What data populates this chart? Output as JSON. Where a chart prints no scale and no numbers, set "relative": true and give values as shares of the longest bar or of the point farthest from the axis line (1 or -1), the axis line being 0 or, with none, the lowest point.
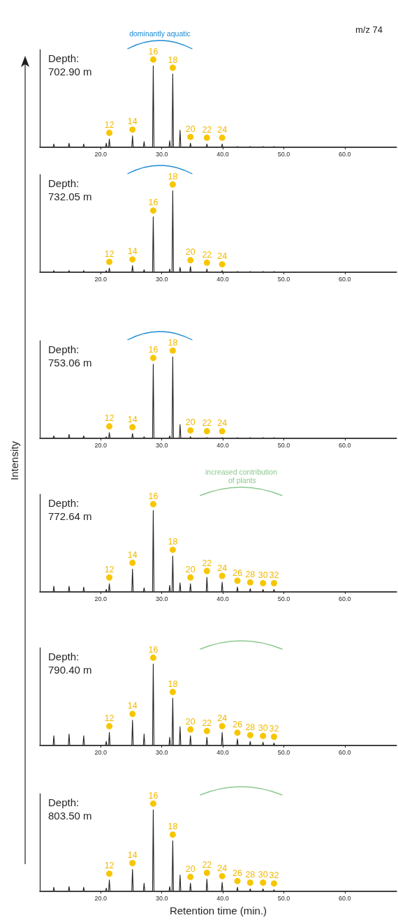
{
  "chart_data": [
    {
      "type": "line",
      "relative": true,
      "title": "Depth: 702.90 m",
      "tick_labels": "x",
      "marker": "none",
      "xlim": [
        10,
        68.5
      ],
      "xticks": [
        {
          "value": 20,
          "label": "20.0"
        },
        {
          "value": 30,
          "label": "30.0"
        },
        {
          "value": 40,
          "label": "40.0"
        },
        {
          "value": 50,
          "label": "50.0"
        },
        {
          "value": 60,
          "label": "60.0"
        }
      ],
      "x": [
        10.2,
        12.18,
        12.3,
        12.42,
        14.68,
        14.8,
        14.92,
        17.08,
        17.2,
        17.32,
        20.78,
        20.9,
        21.02,
        21.28,
        21.4,
        21.52,
        25.08,
        25.2,
        25.32,
        26.98,
        27.1,
        27.22,
        28.48,
        28.6,
        28.72,
        31.18,
        31.3,
        31.42,
        31.68,
        31.8,
        31.92,
        32.88,
        33.0,
        33.12,
        34.58,
        34.7,
        34.82,
        37.28,
        37.4,
        37.52,
        39.78,
        39.9,
        40.02,
        42.28,
        42.4,
        42.52,
        44.38,
        44.5,
        44.62,
        46.48,
        46.6,
        46.72,
        48.28,
        48.4,
        48.52,
        68.5
      ],
      "series": [
        {
          "color": "#231f20",
          "values": [
            0,
            0,
            0.04,
            0,
            0,
            0.05,
            0,
            0,
            0.04,
            0,
            0,
            0.05,
            0,
            0,
            0.1,
            0,
            0,
            0.14,
            0,
            0,
            0.07,
            0,
            0,
            1,
            0,
            0,
            0.08,
            0,
            0,
            0.9,
            0,
            0,
            0.21,
            0,
            0,
            0.05,
            0,
            0,
            0.04,
            0,
            0,
            0.04,
            0,
            0,
            0.01,
            0,
            0,
            0.01,
            0,
            0,
            0.01,
            0,
            0,
            0.01,
            0,
            0
          ]
        }
      ],
      "annotations": [
        "m/z 74",
        "dominantly aquatic",
        {
          "text": "12",
          "x": 21.4,
          "y": 0.1
        },
        {
          "text": "14",
          "x": 25.2,
          "y": 0.14
        },
        {
          "text": "16",
          "x": 28.6,
          "y": 1
        },
        {
          "text": "18",
          "x": 31.8,
          "y": 0.9
        },
        {
          "text": "20",
          "x": 34.7,
          "y": 0.05
        },
        {
          "text": "22",
          "x": 37.4,
          "y": 0.04
        },
        {
          "text": "24",
          "x": 39.9,
          "y": 0.04
        }
      ]
    },
    {
      "type": "line",
      "relative": true,
      "title": "Depth: 732.05 m",
      "tick_labels": "x",
      "marker": "none",
      "xlim": [
        10,
        68.5
      ],
      "xticks": [
        {
          "value": 20,
          "label": "20.0"
        },
        {
          "value": 30,
          "label": "30.0"
        },
        {
          "value": 40,
          "label": "40.0"
        },
        {
          "value": 50,
          "label": "50.0"
        },
        {
          "value": 60,
          "label": "60.0"
        }
      ],
      "x": [
        10.2,
        12.18,
        12.3,
        12.42,
        14.68,
        14.8,
        14.92,
        17.08,
        17.2,
        17.32,
        20.78,
        20.9,
        21.02,
        21.28,
        21.4,
        21.52,
        25.08,
        25.2,
        25.32,
        26.98,
        27.1,
        27.22,
        28.48,
        28.6,
        28.72,
        31.18,
        31.3,
        31.42,
        31.68,
        31.8,
        31.92,
        32.88,
        33.0,
        33.12,
        34.58,
        34.7,
        34.82,
        37.28,
        37.4,
        37.52,
        39.78,
        39.9,
        40.02,
        42.28,
        42.4,
        42.52,
        44.38,
        44.5,
        44.62,
        46.48,
        46.6,
        46.72,
        48.28,
        48.4,
        48.52,
        68.5
      ],
      "series": [
        {
          "color": "#231f20",
          "values": [
            0,
            0,
            0.02,
            0,
            0,
            0.02,
            0,
            0,
            0.02,
            0,
            0,
            0.02,
            0,
            0,
            0.05,
            0,
            0,
            0.08,
            0,
            0,
            0.03,
            0,
            0,
            0.68,
            0,
            0,
            0.04,
            0,
            0,
            1,
            0,
            0,
            0.06,
            0,
            0,
            0.07,
            0,
            0,
            0.04,
            0,
            0,
            0.02,
            0,
            0,
            0.01,
            0,
            0,
            0.01,
            0,
            0,
            0.01,
            0,
            0,
            0.01,
            0,
            0
          ]
        }
      ],
      "annotations": [
        {
          "text": "12",
          "x": 21.4,
          "y": 0.05
        },
        {
          "text": "14",
          "x": 25.2,
          "y": 0.08
        },
        {
          "text": "16",
          "x": 28.6,
          "y": 0.68
        },
        {
          "text": "18",
          "x": 31.8,
          "y": 1
        },
        {
          "text": "20",
          "x": 34.7,
          "y": 0.07
        },
        {
          "text": "22",
          "x": 37.4,
          "y": 0.04
        },
        {
          "text": "24",
          "x": 39.9,
          "y": 0.02
        }
      ]
    },
    {
      "type": "line",
      "relative": true,
      "title": "Depth: 753.06 m",
      "ylabel": "Intensity",
      "tick_labels": "x",
      "marker": "none",
      "xlim": [
        10,
        68.5
      ],
      "xticks": [
        {
          "value": 20,
          "label": "20.0"
        },
        {
          "value": 30,
          "label": "30.0"
        },
        {
          "value": 40,
          "label": "40.0"
        },
        {
          "value": 50,
          "label": "50.0"
        },
        {
          "value": 60,
          "label": "60.0"
        }
      ],
      "x": [
        10.2,
        12.18,
        12.3,
        12.42,
        14.68,
        14.8,
        14.92,
        17.08,
        17.2,
        17.32,
        20.78,
        20.9,
        21.02,
        21.28,
        21.4,
        21.52,
        25.08,
        25.2,
        25.32,
        26.98,
        27.1,
        27.22,
        28.48,
        28.6,
        28.72,
        31.18,
        31.3,
        31.42,
        31.68,
        31.8,
        31.92,
        32.88,
        33.0,
        33.12,
        34.58,
        34.7,
        34.82,
        37.28,
        37.4,
        37.52,
        39.78,
        39.9,
        40.02,
        42.28,
        42.4,
        42.52,
        44.38,
        44.5,
        44.62,
        46.48,
        46.6,
        46.72,
        48.28,
        48.4,
        48.52,
        68.5
      ],
      "series": [
        {
          "color": "#231f20",
          "values": [
            0,
            0,
            0.03,
            0,
            0,
            0.05,
            0,
            0,
            0.03,
            0,
            0,
            0.02,
            0,
            0,
            0.07,
            0,
            0,
            0.06,
            0,
            0,
            0.02,
            0,
            0,
            0.91,
            0,
            0,
            0.03,
            0,
            0,
            1,
            0,
            0,
            0.17,
            0,
            0,
            0.02,
            0,
            0,
            0.01,
            0,
            0,
            0.01,
            0,
            0,
            0.01,
            0,
            0,
            0.01,
            0,
            0,
            0.01,
            0,
            0,
            0.01,
            0,
            0
          ]
        }
      ],
      "annotations": [
        {
          "text": "12",
          "x": 21.4,
          "y": 0.07
        },
        {
          "text": "14",
          "x": 25.2,
          "y": 0.06
        },
        {
          "text": "16",
          "x": 28.6,
          "y": 0.91
        },
        {
          "text": "18",
          "x": 31.8,
          "y": 1
        },
        {
          "text": "20",
          "x": 34.7,
          "y": 0.02
        },
        {
          "text": "22",
          "x": 37.4,
          "y": 0.01
        },
        {
          "text": "24",
          "x": 39.9,
          "y": 0.01
        }
      ]
    },
    {
      "type": "line",
      "relative": true,
      "title": "Depth: 772.64 m",
      "tick_labels": "x",
      "marker": "none",
      "xlim": [
        10,
        68.5
      ],
      "xticks": [
        {
          "value": 20,
          "label": "20.0"
        },
        {
          "value": 30,
          "label": "30.0"
        },
        {
          "value": 40,
          "label": "40.0"
        },
        {
          "value": 50,
          "label": "50.0"
        },
        {
          "value": 60,
          "label": "60.0"
        }
      ],
      "x": [
        10.2,
        12.18,
        12.3,
        12.42,
        14.68,
        14.8,
        14.92,
        17.08,
        17.2,
        17.32,
        20.78,
        20.9,
        21.02,
        21.28,
        21.4,
        21.52,
        25.08,
        25.2,
        25.32,
        26.98,
        27.1,
        27.22,
        28.48,
        28.6,
        28.72,
        31.18,
        31.3,
        31.42,
        31.68,
        31.8,
        31.92,
        32.88,
        33.0,
        33.12,
        34.58,
        34.7,
        34.82,
        37.28,
        37.4,
        37.52,
        39.78,
        39.9,
        40.02,
        42.28,
        42.4,
        42.52,
        44.38,
        44.5,
        44.62,
        46.48,
        46.6,
        46.72,
        48.28,
        48.4,
        48.52,
        68.5
      ],
      "series": [
        {
          "color": "#231f20",
          "values": [
            0,
            0,
            0.07,
            0,
            0,
            0.07,
            0,
            0,
            0.06,
            0,
            0,
            0.03,
            0,
            0,
            0.1,
            0,
            0,
            0.28,
            0,
            0,
            0.05,
            0,
            0,
            1,
            0,
            0,
            0.08,
            0,
            0,
            0.44,
            0,
            0,
            0.11,
            0,
            0,
            0.1,
            0,
            0,
            0.18,
            0,
            0,
            0.12,
            0,
            0,
            0.06,
            0,
            0,
            0.04,
            0,
            0,
            0.03,
            0,
            0,
            0.03,
            0,
            0
          ]
        }
      ],
      "annotations": [
        "increased contribution of plants",
        {
          "text": "12",
          "x": 21.4,
          "y": 0.1
        },
        {
          "text": "14",
          "x": 25.2,
          "y": 0.28
        },
        {
          "text": "16",
          "x": 28.6,
          "y": 1
        },
        {
          "text": "18",
          "x": 31.8,
          "y": 0.44
        },
        {
          "text": "20",
          "x": 34.7,
          "y": 0.1
        },
        {
          "text": "22",
          "x": 37.4,
          "y": 0.18
        },
        {
          "text": "24",
          "x": 39.9,
          "y": 0.12
        },
        {
          "text": "26",
          "x": 42.4,
          "y": 0.06
        },
        {
          "text": "28",
          "x": 44.5,
          "y": 0.04
        },
        {
          "text": "30",
          "x": 46.6,
          "y": 0.03
        },
        {
          "text": "32",
          "x": 48.4,
          "y": 0.03
        }
      ]
    },
    {
      "type": "line",
      "relative": true,
      "title": "Depth: 790.40 m",
      "tick_labels": "x",
      "marker": "none",
      "xlim": [
        10,
        68.5
      ],
      "xticks": [
        {
          "value": 20,
          "label": "20.0"
        },
        {
          "value": 30,
          "label": "30.0"
        },
        {
          "value": 40,
          "label": "40.0"
        },
        {
          "value": 50,
          "label": "50.0"
        },
        {
          "value": 60,
          "label": "60.0"
        }
      ],
      "x": [
        10.2,
        12.18,
        12.3,
        12.42,
        14.68,
        14.8,
        14.92,
        17.08,
        17.2,
        17.32,
        20.78,
        20.9,
        21.02,
        21.28,
        21.4,
        21.52,
        25.08,
        25.2,
        25.32,
        26.98,
        27.1,
        27.22,
        28.48,
        28.6,
        28.72,
        31.18,
        31.3,
        31.42,
        31.68,
        31.8,
        31.92,
        32.88,
        33.0,
        33.12,
        34.58,
        34.7,
        34.82,
        37.28,
        37.4,
        37.52,
        39.78,
        39.9,
        40.02,
        42.28,
        42.4,
        42.52,
        44.38,
        44.5,
        44.62,
        46.48,
        46.6,
        46.72,
        48.28,
        48.4,
        48.52,
        68.5
      ],
      "series": [
        {
          "color": "#231f20",
          "values": [
            0,
            0,
            0.12,
            0,
            0,
            0.14,
            0,
            0,
            0.12,
            0,
            0,
            0.05,
            0,
            0,
            0.16,
            0,
            0,
            0.31,
            0,
            0,
            0.14,
            0,
            0,
            1,
            0,
            0,
            0.1,
            0,
            0,
            0.58,
            0,
            0,
            0.23,
            0,
            0,
            0.12,
            0,
            0,
            0.1,
            0,
            0,
            0.16,
            0,
            0,
            0.08,
            0,
            0,
            0.05,
            0,
            0,
            0.04,
            0,
            0,
            0.03,
            0,
            0
          ]
        }
      ],
      "annotations": [
        {
          "text": "12",
          "x": 21.4,
          "y": 0.16
        },
        {
          "text": "14",
          "x": 25.2,
          "y": 0.31
        },
        {
          "text": "16",
          "x": 28.6,
          "y": 1
        },
        {
          "text": "18",
          "x": 31.8,
          "y": 0.58
        },
        {
          "text": "20",
          "x": 34.7,
          "y": 0.12
        },
        {
          "text": "22",
          "x": 37.4,
          "y": 0.1
        },
        {
          "text": "24",
          "x": 39.9,
          "y": 0.16
        },
        {
          "text": "26",
          "x": 42.4,
          "y": 0.08
        },
        {
          "text": "28",
          "x": 44.5,
          "y": 0.05
        },
        {
          "text": "30",
          "x": 46.6,
          "y": 0.04
        },
        {
          "text": "32",
          "x": 48.4,
          "y": 0.03
        }
      ]
    },
    {
      "type": "line",
      "relative": true,
      "title": "Depth: 803.50 m",
      "xlabel": "Retention time (min.)",
      "tick_labels": "x",
      "marker": "none",
      "xlim": [
        10,
        68.5
      ],
      "xticks": [
        {
          "value": 20,
          "label": "20.0"
        },
        {
          "value": 30,
          "label": "30.0"
        },
        {
          "value": 40,
          "label": "40.0"
        },
        {
          "value": 50,
          "label": "50.0"
        },
        {
          "value": 60,
          "label": "60.0"
        }
      ],
      "x": [
        10.2,
        12.18,
        12.3,
        12.42,
        14.68,
        14.8,
        14.92,
        17.08,
        17.2,
        17.32,
        20.78,
        20.9,
        21.02,
        21.28,
        21.4,
        21.52,
        25.08,
        25.2,
        25.32,
        26.98,
        27.1,
        27.22,
        28.48,
        28.6,
        28.72,
        31.18,
        31.3,
        31.42,
        31.68,
        31.8,
        31.92,
        32.88,
        33.0,
        33.12,
        34.58,
        34.7,
        34.82,
        37.28,
        37.4,
        37.52,
        39.78,
        39.9,
        40.02,
        42.28,
        42.4,
        42.52,
        44.38,
        44.5,
        44.62,
        46.48,
        46.6,
        46.72,
        48.28,
        48.4,
        48.52,
        68.5
      ],
      "series": [
        {
          "color": "#231f20",
          "values": [
            0,
            0,
            0.05,
            0,
            0,
            0.06,
            0,
            0,
            0.05,
            0,
            0,
            0.04,
            0,
            0,
            0.14,
            0,
            0,
            0.27,
            0,
            0,
            0.1,
            0,
            0,
            1,
            0,
            0,
            0.06,
            0,
            0,
            0.62,
            0,
            0,
            0.2,
            0,
            0,
            0.1,
            0,
            0,
            0.15,
            0,
            0,
            0.11,
            0,
            0,
            0.05,
            0,
            0,
            0.03,
            0,
            0,
            0.03,
            0,
            0,
            0.02,
            0,
            0
          ]
        }
      ],
      "annotations": [
        {
          "text": "12",
          "x": 21.4,
          "y": 0.14
        },
        {
          "text": "14",
          "x": 25.2,
          "y": 0.27
        },
        {
          "text": "16",
          "x": 28.6,
          "y": 1
        },
        {
          "text": "18",
          "x": 31.8,
          "y": 0.62
        },
        {
          "text": "20",
          "x": 34.7,
          "y": 0.1
        },
        {
          "text": "22",
          "x": 37.4,
          "y": 0.15
        },
        {
          "text": "24",
          "x": 39.9,
          "y": 0.11
        },
        {
          "text": "26",
          "x": 42.4,
          "y": 0.05
        },
        {
          "text": "28",
          "x": 44.5,
          "y": 0.03
        },
        {
          "text": "30",
          "x": 46.6,
          "y": 0.03
        },
        {
          "text": "32",
          "x": 48.4,
          "y": 0.02
        }
      ]
    }
  ]
}
